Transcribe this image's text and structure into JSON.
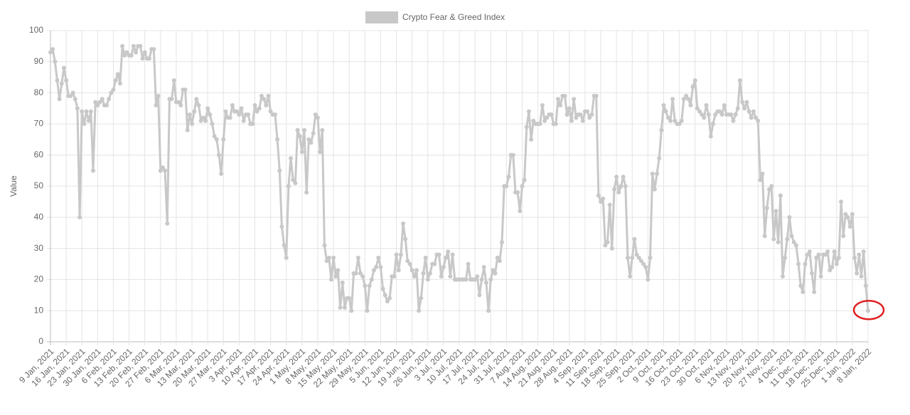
{
  "chart_data": {
    "type": "line",
    "legend": "top",
    "ylabel": "Value",
    "grid": true,
    "ylim": [
      0,
      100
    ],
    "yticks": [
      0,
      10,
      20,
      30,
      40,
      50,
      60,
      70,
      80,
      90,
      100
    ],
    "categories": [
      "9 Jan, 2021",
      null,
      null,
      null,
      null,
      null,
      null,
      "16 Jan, 2021",
      null,
      null,
      null,
      null,
      null,
      null,
      "23 Jan, 2021",
      null,
      null,
      null,
      null,
      null,
      null,
      "30 Jan, 2021",
      null,
      null,
      null,
      null,
      null,
      null,
      "6 Feb, 2021",
      null,
      null,
      null,
      null,
      null,
      null,
      "13 Feb, 2021",
      null,
      null,
      null,
      null,
      null,
      null,
      "20 Feb, 2021",
      null,
      null,
      null,
      null,
      null,
      null,
      "27 Feb, 2021",
      null,
      null,
      null,
      null,
      null,
      null,
      "6 Mar, 2021",
      null,
      null,
      null,
      null,
      null,
      null,
      "13 Mar, 2021",
      null,
      null,
      null,
      null,
      null,
      null,
      "20 Mar, 2021",
      null,
      null,
      null,
      null,
      null,
      null,
      "27 Mar, 2021",
      null,
      null,
      null,
      null,
      null,
      null,
      "3 Apr, 2021",
      null,
      null,
      null,
      null,
      null,
      null,
      "10 Apr, 2021",
      null,
      null,
      null,
      null,
      null,
      null,
      "17 Apr, 2021",
      null,
      null,
      null,
      null,
      null,
      null,
      "24 Apr, 2021",
      null,
      null,
      null,
      null,
      null,
      null,
      "1 May, 2021",
      null,
      null,
      null,
      null,
      null,
      null,
      "8 May, 2021",
      null,
      null,
      null,
      null,
      null,
      null,
      "15 May, 2021",
      null,
      null,
      null,
      null,
      null,
      null,
      "22 May, 2021",
      null,
      null,
      null,
      null,
      null,
      null,
      "29 May, 2021",
      null,
      null,
      null,
      null,
      null,
      null,
      "5 Jun, 2021",
      null,
      null,
      null,
      null,
      null,
      null,
      "12 Jun, 2021",
      null,
      null,
      null,
      null,
      null,
      null,
      "19 Jun, 2021",
      null,
      null,
      null,
      null,
      null,
      null,
      "26 Jun, 2021",
      null,
      null,
      null,
      null,
      null,
      null,
      "3 Jul, 2021",
      null,
      null,
      null,
      null,
      null,
      null,
      "10 Jul, 2021",
      null,
      null,
      null,
      null,
      null,
      null,
      "17 Jul, 2021",
      null,
      null,
      null,
      null,
      null,
      null,
      "24 Jul, 2021",
      null,
      null,
      null,
      null,
      null,
      null,
      "31 Jul, 2021",
      null,
      null,
      null,
      null,
      null,
      null,
      "7 Aug, 2021",
      null,
      null,
      null,
      null,
      null,
      null,
      "14 Aug, 2021",
      null,
      null,
      null,
      null,
      null,
      null,
      "21 Aug, 2021",
      null,
      null,
      null,
      null,
      null,
      null,
      "28 Aug, 2021",
      null,
      null,
      null,
      null,
      null,
      null,
      "4 Sep, 2021",
      null,
      null,
      null,
      null,
      null,
      null,
      "11 Sep, 2021",
      null,
      null,
      null,
      null,
      null,
      null,
      "18 Sep, 2021",
      null,
      null,
      null,
      null,
      null,
      null,
      "25 Sep, 2021",
      null,
      null,
      null,
      null,
      null,
      null,
      "2 Oct, 2021",
      null,
      null,
      null,
      null,
      null,
      null,
      "9 Oct, 2021",
      null,
      null,
      null,
      null,
      null,
      null,
      "16 Oct, 2021",
      null,
      null,
      null,
      null,
      null,
      null,
      "23 Oct, 2021",
      null,
      null,
      null,
      null,
      null,
      null,
      "30 Oct, 2021",
      null,
      null,
      null,
      null,
      null,
      null,
      "6 Nov, 2021",
      null,
      null,
      null,
      null,
      null,
      null,
      "13 Nov, 2021",
      null,
      null,
      null,
      null,
      null,
      null,
      "20 Nov, 2021",
      null,
      null,
      null,
      null,
      null,
      null,
      "27 Nov, 2021",
      null,
      null,
      null,
      null,
      null,
      null,
      "4 Dec, 2021",
      null,
      null,
      null,
      null,
      null,
      null,
      "11 Dec, 2021",
      null,
      null,
      null,
      null,
      null,
      null,
      "18 Dec, 2021",
      null,
      null,
      null,
      null,
      null,
      null,
      "25 Dec, 2021",
      null,
      null,
      null,
      null,
      null,
      null,
      "1 Jan, 2022",
      null,
      null,
      null,
      null,
      null,
      null,
      "8 Jan, 2022"
    ],
    "series": [
      {
        "name": "Crypto Fear & Greed Index",
        "color": "#c8c8c8",
        "values": [
          93,
          94,
          90,
          84,
          78,
          83,
          88,
          84,
          79,
          79,
          80,
          78,
          75,
          40,
          74,
          70,
          74,
          71,
          74,
          55,
          77,
          76,
          77,
          78,
          76,
          76,
          78,
          80,
          81,
          84,
          86,
          83,
          95,
          92,
          93,
          92,
          92,
          95,
          93,
          95,
          95,
          91,
          93,
          91,
          91,
          94,
          94,
          76,
          79,
          55,
          56,
          55,
          38,
          78,
          78,
          84,
          77,
          77,
          76,
          81,
          81,
          68,
          73,
          70,
          74,
          78,
          76,
          71,
          72,
          71,
          75,
          73,
          70,
          66,
          65,
          60,
          54,
          65,
          74,
          72,
          72,
          76,
          74,
          74,
          73,
          75,
          71,
          73,
          73,
          70,
          70,
          76,
          74,
          75,
          79,
          78,
          76,
          79,
          74,
          73,
          73,
          65,
          55,
          37,
          31,
          27,
          50,
          59,
          52,
          51,
          68,
          66,
          61,
          68,
          48,
          65,
          64,
          67,
          73,
          72,
          61,
          68,
          31,
          26,
          27,
          20,
          27,
          21,
          23,
          11,
          19,
          11,
          14,
          14,
          10,
          22,
          22,
          27,
          22,
          21,
          18,
          10,
          18,
          20,
          23,
          24,
          27,
          24,
          17,
          15,
          13,
          14,
          21,
          21,
          28,
          23,
          28,
          38,
          33,
          26,
          25,
          23,
          21,
          23,
          10,
          14,
          22,
          27,
          20,
          22,
          25,
          25,
          28,
          28,
          21,
          24,
          27,
          29,
          21,
          28,
          20,
          20,
          20,
          20,
          20,
          20,
          25,
          20,
          20,
          20,
          21,
          15,
          20,
          24,
          19,
          10,
          20,
          23,
          22,
          27,
          26,
          32,
          50,
          50,
          53,
          60,
          60,
          48,
          48,
          42,
          50,
          52,
          69,
          74,
          65,
          71,
          70,
          70,
          70,
          76,
          71,
          72,
          73,
          73,
          70,
          70,
          78,
          76,
          79,
          79,
          73,
          75,
          71,
          78,
          72,
          73,
          73,
          71,
          74,
          74,
          72,
          73,
          79,
          79,
          47,
          45,
          46,
          31,
          32,
          44,
          30,
          49,
          53,
          48,
          50,
          53,
          50,
          27,
          21,
          27,
          33,
          28,
          27,
          26,
          25,
          24,
          20,
          27,
          54,
          49,
          54,
          59,
          68,
          76,
          74,
          72,
          71,
          78,
          71,
          70,
          70,
          71,
          78,
          79,
          78,
          76,
          82,
          84,
          75,
          74,
          73,
          72,
          76,
          73,
          66,
          70,
          73,
          74,
          74,
          73,
          76,
          73,
          73,
          73,
          71,
          73,
          75,
          84,
          77,
          75,
          77,
          74,
          72,
          74,
          72,
          71,
          52,
          54,
          34,
          43,
          49,
          50,
          33,
          42,
          32,
          47,
          21,
          27,
          33,
          40,
          34,
          32,
          31,
          25,
          18,
          16,
          25,
          28,
          29,
          22,
          16,
          27,
          28,
          21,
          28,
          28,
          29,
          23,
          24,
          29,
          25,
          27,
          45,
          34,
          41,
          40,
          37,
          41,
          27,
          22,
          28,
          21,
          29,
          18,
          10
        ]
      }
    ]
  }
}
